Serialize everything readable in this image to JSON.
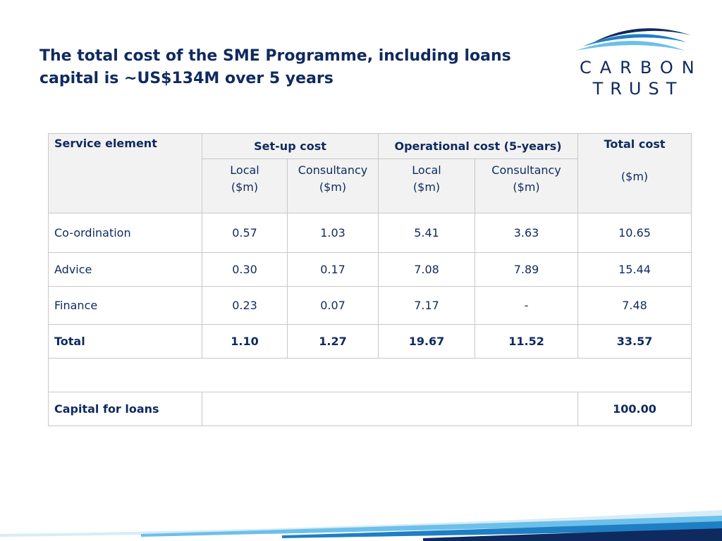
{
  "slide": {
    "title_line1": "The total cost of the SME Programme, including loans",
    "title_line2": "capital is ~US$134M over 5 years"
  },
  "logo": {
    "word1": "CARBON",
    "word2": "TRUST",
    "colors": {
      "dark": "#0f2a5e",
      "mid": "#1f7fc4",
      "light": "#6cc0ea"
    }
  },
  "table": {
    "headers": {
      "service_element": "Service element",
      "setup_cost": "Set-up cost",
      "operational_cost": "Operational cost (5-years)",
      "total_cost": "Total cost",
      "total_unit": "($m)",
      "setup_local": "Local",
      "setup_local_unit": "($m)",
      "setup_consultancy": "Consultancy",
      "setup_consultancy_unit": "($m)",
      "op_local": "Local",
      "op_local_unit": "($m)",
      "op_consultancy": "Consultancy",
      "op_consultancy_unit": "($m)"
    },
    "rows": [
      {
        "label": "Co-ordination",
        "setup_local": "0.57",
        "setup_consultancy": "1.03",
        "op_local": "5.41",
        "op_consultancy": "3.63",
        "total": "10.65"
      },
      {
        "label": "Advice",
        "setup_local": "0.30",
        "setup_consultancy": "0.17",
        "op_local": "7.08",
        "op_consultancy": "7.89",
        "total": "15.44"
      },
      {
        "label": "Finance",
        "setup_local": "0.23",
        "setup_consultancy": "0.07",
        "op_local": "7.17",
        "op_consultancy": "-",
        "total": "7.48"
      }
    ],
    "total_row": {
      "label": "Total",
      "setup_local": "1.10",
      "setup_consultancy": "1.27",
      "op_local": "19.67",
      "op_consultancy": "11.52",
      "total": "33.57"
    },
    "capital_row": {
      "label": "Capital for loans",
      "total": "100.00"
    }
  }
}
